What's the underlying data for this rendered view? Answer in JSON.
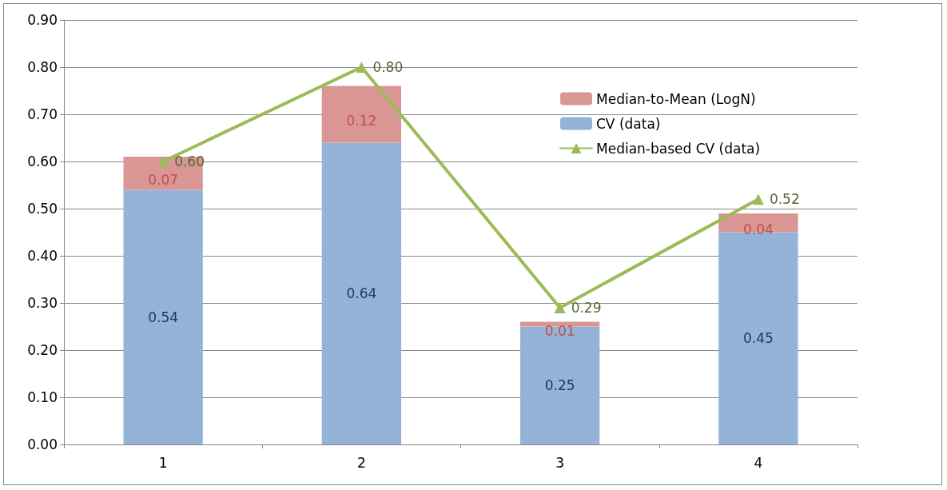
{
  "chart_data": {
    "type": "bar",
    "stacked": true,
    "categories": [
      "1",
      "2",
      "3",
      "4"
    ],
    "series": [
      {
        "name": "CV (data)",
        "color": "#95b3d7",
        "values": [
          0.54,
          0.64,
          0.25,
          0.45
        ],
        "value_labels": [
          "0.54",
          "0.64",
          "0.25",
          "0.45"
        ]
      },
      {
        "name": "Median-to-Mean (LogN)",
        "color": "#d99694",
        "values": [
          0.07,
          0.12,
          0.01,
          0.04
        ],
        "value_labels": [
          "0.07",
          "0.12",
          "0.01",
          "0.04"
        ]
      },
      {
        "name": "Median-based CV (data)",
        "type": "line",
        "color": "#9bbb59",
        "marker": "triangle",
        "values": [
          0.6,
          0.8,
          0.29,
          0.52
        ],
        "value_labels": [
          "0.60",
          "0.80",
          "0.29",
          "0.52"
        ]
      }
    ],
    "ylim": [
      0,
      0.9
    ],
    "yticks": [
      {
        "value": 0,
        "label": "0.00"
      },
      {
        "value": 0.1,
        "label": "0.10"
      },
      {
        "value": 0.2,
        "label": "0.20"
      },
      {
        "value": 0.3,
        "label": "0.30"
      },
      {
        "value": 0.4,
        "label": "0.40"
      },
      {
        "value": 0.5,
        "label": "0.50"
      },
      {
        "value": 0.6,
        "label": "0.60"
      },
      {
        "value": 0.7,
        "label": "0.70"
      },
      {
        "value": 0.8,
        "label": "0.80"
      },
      {
        "value": 0.9,
        "label": "0.90"
      }
    ],
    "grid": "y",
    "legend": "right"
  }
}
